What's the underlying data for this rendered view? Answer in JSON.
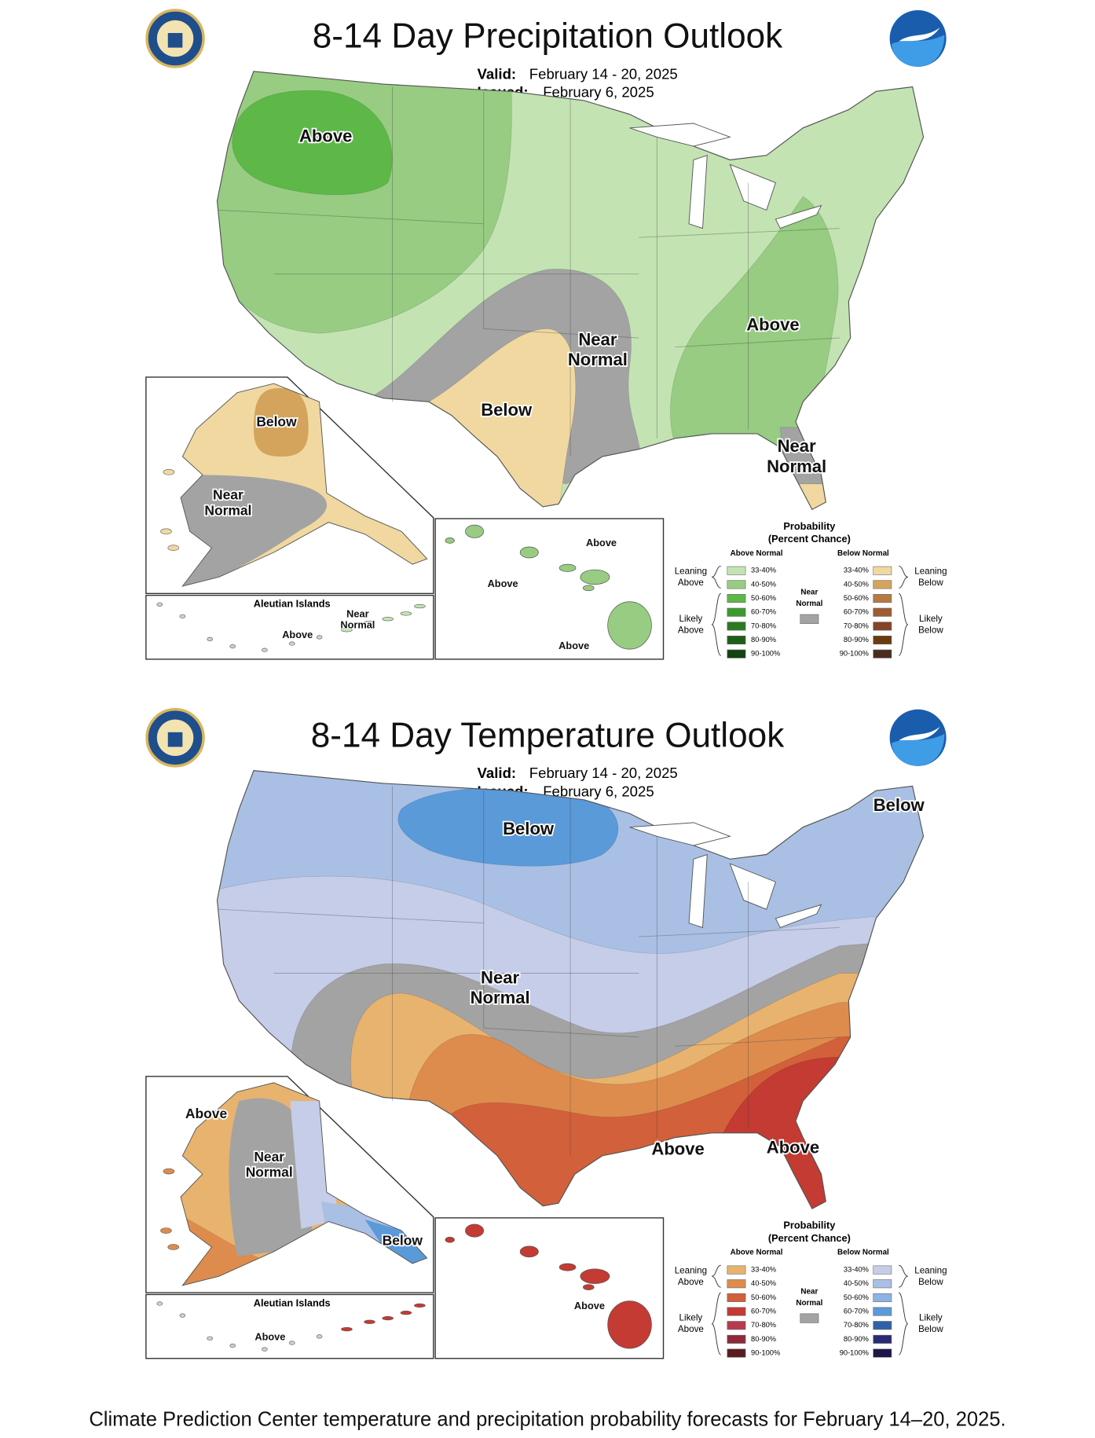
{
  "maps": [
    {
      "title": "8-14 Day Precipitation Outlook",
      "valid_label": "Valid:",
      "valid": "February 14 - 20, 2025",
      "issued_label": "Issued:",
      "issued": "February 6, 2025",
      "regions": [
        {
          "lines": [
            "Above"
          ]
        },
        {
          "lines": [
            "Near",
            "Normal"
          ]
        },
        {
          "lines": [
            "Below"
          ]
        },
        {
          "lines": [
            "Above"
          ]
        },
        {
          "lines": [
            "Near",
            "Normal"
          ]
        }
      ],
      "alaska": [
        {
          "lines": [
            "Below"
          ]
        },
        {
          "lines": [
            "Near",
            "Normal"
          ]
        }
      ],
      "aleutians_title": "Aleutian Islands",
      "aleutians": [
        {
          "lines": [
            "Near",
            "Normal"
          ]
        },
        {
          "lines": [
            "Above"
          ]
        }
      ],
      "hawaii": [
        {
          "lines": [
            "Above"
          ]
        },
        {
          "lines": [
            "Above"
          ]
        },
        {
          "lines": [
            "Above"
          ]
        }
      ],
      "legend": {
        "title": "Probability",
        "subtitle": "(Percent Chance)",
        "above_header": "Above Normal",
        "below_header": "Below Normal",
        "leaning_above": [
          "Leaning",
          "Above"
        ],
        "likely_above": [
          "Likely",
          "Above"
        ],
        "near": [
          "Near",
          "Normal"
        ],
        "leaning_below": [
          "Leaning",
          "Below"
        ],
        "likely_below": [
          "Likely",
          "Below"
        ],
        "ranges": [
          "33-40%",
          "40-50%",
          "50-60%",
          "60-70%",
          "70-80%",
          "80-90%",
          "90-100%"
        ],
        "above_colors": [
          "#c3e3b3",
          "#97cc82",
          "#5db848",
          "#3d9a2e",
          "#2b7a21",
          "#1f5e18",
          "#134312"
        ],
        "below_colors": [
          "#f0d8a0",
          "#d4a45c",
          "#b77a43",
          "#9d5c34",
          "#834428",
          "#6b3b10",
          "#4a2c1f"
        ],
        "near_color": "#a3a3a3"
      }
    },
    {
      "title": "8-14 Day Temperature Outlook",
      "valid_label": "Valid:",
      "valid": "February 14 - 20, 2025",
      "issued_label": "Issued:",
      "issued": "February 6, 2025",
      "regions": [
        {
          "lines": [
            "Below"
          ]
        },
        {
          "lines": [
            "Below"
          ]
        },
        {
          "lines": [
            "Near",
            "Normal"
          ]
        },
        {
          "lines": [
            "Above"
          ]
        },
        {
          "lines": [
            "Above"
          ]
        }
      ],
      "alaska": [
        {
          "lines": [
            "Above"
          ]
        },
        {
          "lines": [
            "Near",
            "Normal"
          ]
        },
        {
          "lines": [
            "Below"
          ]
        }
      ],
      "aleutians_title": "Aleutian Islands",
      "aleutians": [
        {
          "lines": [
            "Above"
          ]
        }
      ],
      "hawaii": [
        {
          "lines": [
            "Above"
          ]
        }
      ],
      "legend": {
        "title": "Probability",
        "subtitle": "(Percent Chance)",
        "above_header": "Above Normal",
        "below_header": "Below Normal",
        "leaning_above": [
          "Leaning",
          "Above"
        ],
        "likely_above": [
          "Likely",
          "Above"
        ],
        "near": [
          "Near",
          "Normal"
        ],
        "leaning_below": [
          "Leaning",
          "Below"
        ],
        "likely_below": [
          "Likely",
          "Below"
        ],
        "ranges": [
          "33-40%",
          "40-50%",
          "50-60%",
          "60-70%",
          "70-80%",
          "80-90%",
          "90-100%"
        ],
        "above_colors": [
          "#e8b36e",
          "#dd8c4d",
          "#d2603a",
          "#c33b32",
          "#b83b4d",
          "#8e2a3a",
          "#5a1c1f"
        ],
        "below_colors": [
          "#c6cde8",
          "#a9c0e4",
          "#8cb3e3",
          "#5a9ad9",
          "#2f61a8",
          "#2b2a78",
          "#1d1648"
        ],
        "near_color": "#a3a3a3"
      }
    }
  ],
  "caption": "Climate Prediction Center temperature and precipitation probability forecasts for February 14–20, 2025."
}
